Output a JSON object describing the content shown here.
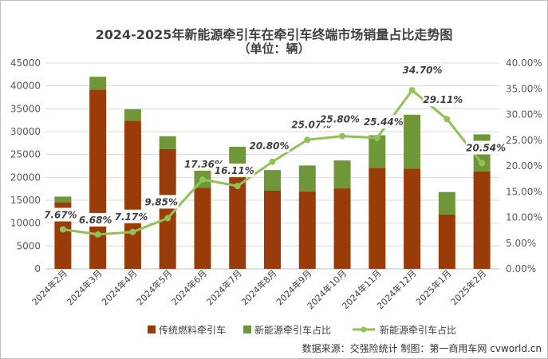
{
  "chart_data": {
    "type": "bar",
    "title": "2024-2025年新能源牵引车在牵引车终端市场销量占比走势图",
    "subtitle": "（单位：辆）",
    "categories": [
      "2024年2月",
      "2024年3月",
      "2024年4月",
      "2024年5月",
      "2024年6月",
      "2024年7月",
      "2024年8月",
      "2024年9月",
      "2024年10月",
      "2024年11月",
      "2024年12月",
      "2025年1月",
      "2025年2月"
    ],
    "series": [
      {
        "name": "传统燃料牵引车",
        "kind": "bar",
        "color": "#9a3c0a",
        "values": [
          14600,
          39200,
          32400,
          26200,
          17700,
          22300,
          17100,
          16900,
          17600,
          22100,
          21900,
          11900,
          21300
        ]
      },
      {
        "name": "新能源牵引车占比",
        "kind": "bar",
        "color": "#70963a",
        "values": [
          1200,
          2800,
          2500,
          2800,
          3900,
          4400,
          4500,
          5700,
          6100,
          7100,
          11800,
          4900,
          8100
        ]
      },
      {
        "name": "新能源牵引车占比",
        "kind": "line",
        "axis": "right",
        "color": "#92c158",
        "values": [
          7.67,
          6.68,
          7.17,
          9.85,
          17.36,
          16.11,
          20.8,
          25.07,
          25.8,
          25.44,
          34.7,
          29.11,
          20.54
        ],
        "labels": [
          "7.67%",
          "6.68%",
          "7.17%",
          "9.85%",
          "17.36%",
          "16.11%",
          "20.80%",
          "25.07%",
          "25.80%",
          "25.44%",
          "34.70%",
          "29.11%",
          "20.54%"
        ]
      }
    ],
    "ylim": [
      0,
      45000
    ],
    "yticks": [
      "0",
      "5000",
      "10000",
      "15000",
      "20000",
      "25000",
      "30000",
      "35000",
      "40000",
      "45000"
    ],
    "y2lim": [
      0,
      40
    ],
    "y2ticks": [
      "0.00%",
      "5.00%",
      "10.00%",
      "15.00%",
      "20.00%",
      "25.00%",
      "30.00%",
      "35.00%",
      "40.00%"
    ],
    "legend_position": "bottom",
    "source": "数据来源：交强险统计  制图：第一商用车网 cvworld.cn"
  }
}
